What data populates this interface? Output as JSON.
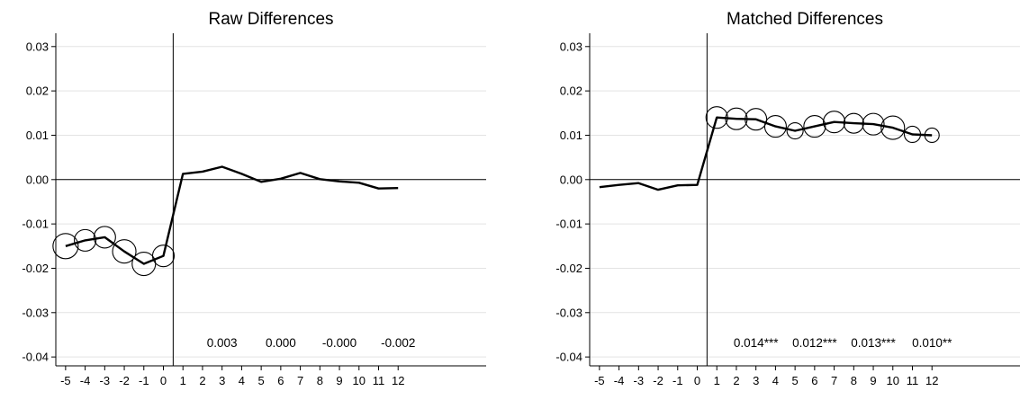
{
  "chart_data": [
    {
      "type": "line",
      "title": "Raw Differences",
      "xlabel": "",
      "ylabel": "",
      "x": [
        -5,
        -4,
        -3,
        -2,
        -1,
        0,
        1,
        2,
        3,
        4,
        5,
        6,
        7,
        8,
        9,
        10,
        11,
        12
      ],
      "xticks": [
        -5,
        -4,
        -3,
        -2,
        -1,
        0,
        1,
        2,
        3,
        4,
        5,
        6,
        7,
        8,
        9,
        10,
        11,
        12
      ],
      "ylim": [
        -0.042,
        0.033
      ],
      "xlim": [
        -5.5,
        16.5
      ],
      "yticks": [
        "0.03",
        "0.02",
        "0.01",
        "0.00",
        "-0.01",
        "-0.02",
        "-0.03",
        "-0.04"
      ],
      "event_line_x": 0.5,
      "series": [
        {
          "values": [
            -0.015,
            -0.0137,
            -0.013,
            -0.0162,
            -0.019,
            -0.0172,
            0.0013,
            0.0018,
            0.0029,
            0.0013,
            -0.0005,
            0.0002,
            0.0015,
            0.0001,
            -0.0004,
            -0.0007,
            -0.002,
            -0.0019
          ],
          "bubble_size": [
            14,
            12,
            12,
            13,
            13,
            12,
            0,
            0,
            0,
            0,
            0,
            0,
            0,
            0,
            0,
            0,
            0,
            0
          ]
        }
      ],
      "annotations": [
        {
          "x": 3,
          "text": "0.003"
        },
        {
          "x": 6,
          "text": "0.000"
        },
        {
          "x": 9,
          "text": "-0.000"
        },
        {
          "x": 12,
          "text": "-0.002"
        }
      ],
      "grid": true
    },
    {
      "type": "line",
      "title": "Matched Differences",
      "xlabel": "",
      "ylabel": "",
      "x": [
        -5,
        -4,
        -3,
        -2,
        -1,
        0,
        1,
        2,
        3,
        4,
        5,
        6,
        7,
        8,
        9,
        10,
        11,
        12
      ],
      "xticks": [
        -5,
        -4,
        -3,
        -2,
        -1,
        0,
        1,
        2,
        3,
        4,
        5,
        6,
        7,
        8,
        9,
        10,
        11,
        12
      ],
      "ylim": [
        -0.042,
        0.033
      ],
      "xlim": [
        -5.5,
        16.5
      ],
      "yticks": [
        "0.03",
        "0.02",
        "0.01",
        "0.00",
        "-0.01",
        "-0.02",
        "-0.03",
        "-0.04"
      ],
      "event_line_x": 0.5,
      "series": [
        {
          "values": [
            -0.0017,
            -0.0012,
            -0.0008,
            -0.0023,
            -0.0013,
            -0.0012,
            0.014,
            0.0137,
            0.0136,
            0.012,
            0.011,
            0.012,
            0.013,
            0.0127,
            0.0125,
            0.0117,
            0.0102,
            0.01
          ],
          "bubble_size": [
            0,
            0,
            0,
            0,
            0,
            0,
            12,
            12,
            12,
            12,
            9,
            12,
            12,
            11,
            12,
            13,
            9,
            8
          ]
        }
      ],
      "annotations": [
        {
          "x": 3,
          "text": "0.014***"
        },
        {
          "x": 6,
          "text": "0.012***"
        },
        {
          "x": 9,
          "text": "0.013***"
        },
        {
          "x": 12,
          "text": "0.010**"
        }
      ],
      "grid": true
    }
  ]
}
